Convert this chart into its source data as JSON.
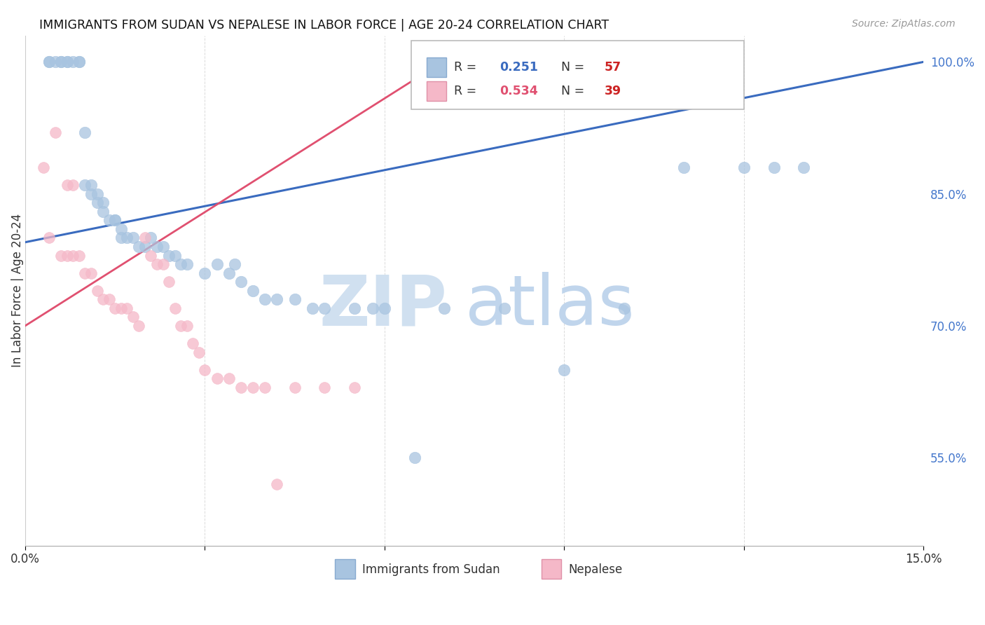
{
  "title": "IMMIGRANTS FROM SUDAN VS NEPALESE IN LABOR FORCE | AGE 20-24 CORRELATION CHART",
  "source": "Source: ZipAtlas.com",
  "ylabel": "In Labor Force | Age 20-24",
  "xlim": [
    0.0,
    0.15
  ],
  "ylim": [
    0.45,
    1.03
  ],
  "xticks": [
    0.0,
    0.03,
    0.06,
    0.09,
    0.12,
    0.15
  ],
  "xtick_labels": [
    "0.0%",
    "",
    "",
    "",
    "",
    "15.0%"
  ],
  "yticks_right": [
    0.55,
    0.7,
    0.85,
    1.0
  ],
  "ytick_labels_right": [
    "55.0%",
    "70.0%",
    "85.0%",
    "100.0%"
  ],
  "sudan_color": "#a8c4e0",
  "nepal_color": "#f5b8c8",
  "line_blue": "#3a6bbf",
  "line_pink": "#e05070",
  "sudan_r": "0.251",
  "sudan_n": "57",
  "nepal_r": "0.534",
  "nepal_n": "39",
  "r_color_blue": "#3a6bbf",
  "r_color_pink": "#e05070",
  "n_color": "#cc2222",
  "legend_border": "#cccccc",
  "grid_color": "#cccccc",
  "watermark_zip_color": "#d0e0f0",
  "watermark_atlas_color": "#c0d5ec",
  "sudan_x": [
    0.004,
    0.004,
    0.005,
    0.006,
    0.006,
    0.007,
    0.007,
    0.008,
    0.009,
    0.009,
    0.01,
    0.01,
    0.011,
    0.011,
    0.012,
    0.012,
    0.013,
    0.013,
    0.014,
    0.015,
    0.015,
    0.016,
    0.016,
    0.017,
    0.018,
    0.019,
    0.02,
    0.021,
    0.022,
    0.023,
    0.024,
    0.025,
    0.026,
    0.027,
    0.03,
    0.032,
    0.034,
    0.035,
    0.036,
    0.038,
    0.04,
    0.042,
    0.045,
    0.048,
    0.05,
    0.055,
    0.058,
    0.06,
    0.065,
    0.07,
    0.08,
    0.09,
    0.1,
    0.11,
    0.12,
    0.125,
    0.13
  ],
  "sudan_y": [
    1.0,
    1.0,
    1.0,
    1.0,
    1.0,
    1.0,
    1.0,
    1.0,
    1.0,
    1.0,
    0.92,
    0.86,
    0.86,
    0.85,
    0.85,
    0.84,
    0.84,
    0.83,
    0.82,
    0.82,
    0.82,
    0.81,
    0.8,
    0.8,
    0.8,
    0.79,
    0.79,
    0.8,
    0.79,
    0.79,
    0.78,
    0.78,
    0.77,
    0.77,
    0.76,
    0.77,
    0.76,
    0.77,
    0.75,
    0.74,
    0.73,
    0.73,
    0.73,
    0.72,
    0.72,
    0.72,
    0.72,
    0.72,
    0.55,
    0.72,
    0.72,
    0.65,
    0.72,
    0.88,
    0.88,
    0.88,
    0.88
  ],
  "nepal_x": [
    0.003,
    0.004,
    0.005,
    0.006,
    0.007,
    0.007,
    0.008,
    0.008,
    0.009,
    0.01,
    0.011,
    0.012,
    0.013,
    0.014,
    0.015,
    0.016,
    0.017,
    0.018,
    0.019,
    0.02,
    0.021,
    0.022,
    0.023,
    0.024,
    0.025,
    0.026,
    0.027,
    0.028,
    0.029,
    0.03,
    0.032,
    0.034,
    0.036,
    0.038,
    0.04,
    0.042,
    0.045,
    0.05,
    0.055
  ],
  "nepal_y": [
    0.88,
    0.8,
    0.92,
    0.78,
    0.78,
    0.86,
    0.78,
    0.86,
    0.78,
    0.76,
    0.76,
    0.74,
    0.73,
    0.73,
    0.72,
    0.72,
    0.72,
    0.71,
    0.7,
    0.8,
    0.78,
    0.77,
    0.77,
    0.75,
    0.72,
    0.7,
    0.7,
    0.68,
    0.67,
    0.65,
    0.64,
    0.64,
    0.63,
    0.63,
    0.63,
    0.52,
    0.63,
    0.63,
    0.63
  ]
}
